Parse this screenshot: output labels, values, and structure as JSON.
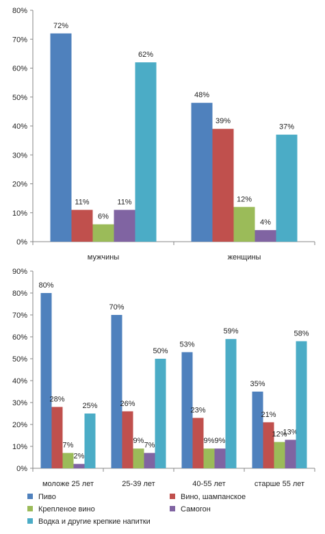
{
  "series_meta": [
    {
      "name": "Пиво",
      "color": "#4F81BD"
    },
    {
      "name": "Вино, шампанское",
      "color": "#C0504D"
    },
    {
      "name": "Крепленое вино",
      "color": "#9BBB59"
    },
    {
      "name": "Самогон",
      "color": "#8064A2"
    },
    {
      "name": "Водка и другие крепкие напитки",
      "color": "#4BACC6"
    }
  ],
  "chart_data": [
    {
      "type": "bar",
      "title": "",
      "xlabel": "",
      "ylabel": "",
      "ylim": [
        0,
        80
      ],
      "yticks": [
        "0%",
        "10%",
        "20%",
        "30%",
        "40%",
        "50%",
        "60%",
        "70%",
        "80%"
      ],
      "grid": false,
      "legend": "none",
      "categories": [
        "мужчины",
        "женщины"
      ],
      "series": [
        {
          "name": "Пиво",
          "values": [
            72,
            48
          ],
          "labels": [
            "72%",
            "48%"
          ]
        },
        {
          "name": "Вино, шампанское",
          "values": [
            11,
            39
          ],
          "labels": [
            "11%",
            "39%"
          ]
        },
        {
          "name": "Крепленое вино",
          "values": [
            6,
            12
          ],
          "labels": [
            "6%",
            "12%"
          ]
        },
        {
          "name": "Самогон",
          "values": [
            11,
            4
          ],
          "labels": [
            "11%",
            "4%"
          ]
        },
        {
          "name": "Водка и другие крепкие напитки",
          "values": [
            62,
            37
          ],
          "labels": [
            "62%",
            "37%"
          ]
        }
      ]
    },
    {
      "type": "bar",
      "title": "",
      "xlabel": "",
      "ylabel": "",
      "ylim": [
        0,
        90
      ],
      "yticks": [
        "0%",
        "10%",
        "20%",
        "30%",
        "40%",
        "50%",
        "60%",
        "70%",
        "80%",
        "90%"
      ],
      "grid": false,
      "legend": "bottom",
      "categories": [
        "моложе 25 лет",
        "25-39 лет",
        "40-55 лет",
        "старше 55 лет"
      ],
      "series": [
        {
          "name": "Пиво",
          "values": [
            80,
            70,
            53,
            35
          ],
          "labels": [
            "80%",
            "70%",
            "53%",
            "35%"
          ]
        },
        {
          "name": "Вино, шампанское",
          "values": [
            28,
            26,
            23,
            21
          ],
          "labels": [
            "28%",
            "26%",
            "23%",
            "21%"
          ]
        },
        {
          "name": "Крепленое вино",
          "values": [
            7,
            9,
            9,
            12
          ],
          "labels": [
            "7%",
            "9%",
            "9%",
            "12%"
          ]
        },
        {
          "name": "Самогон",
          "values": [
            2,
            7,
            9,
            13
          ],
          "labels": [
            "2%",
            "7%",
            "9%",
            "13%"
          ]
        },
        {
          "name": "Водка и другие крепкие напитки",
          "values": [
            25,
            50,
            59,
            58
          ],
          "labels": [
            "25%",
            "50%",
            "59%",
            "58%"
          ]
        }
      ]
    }
  ],
  "legend": {
    "items": [
      {
        "name": "Пиво",
        "color": "#4F81BD"
      },
      {
        "name": "Вино, шампанское",
        "color": "#C0504D"
      },
      {
        "name": "Крепленое вино",
        "color": "#9BBB59"
      },
      {
        "name": "Самогон",
        "color": "#8064A2"
      },
      {
        "name": "Водка и другие крепкие напитки",
        "color": "#4BACC6"
      }
    ]
  }
}
